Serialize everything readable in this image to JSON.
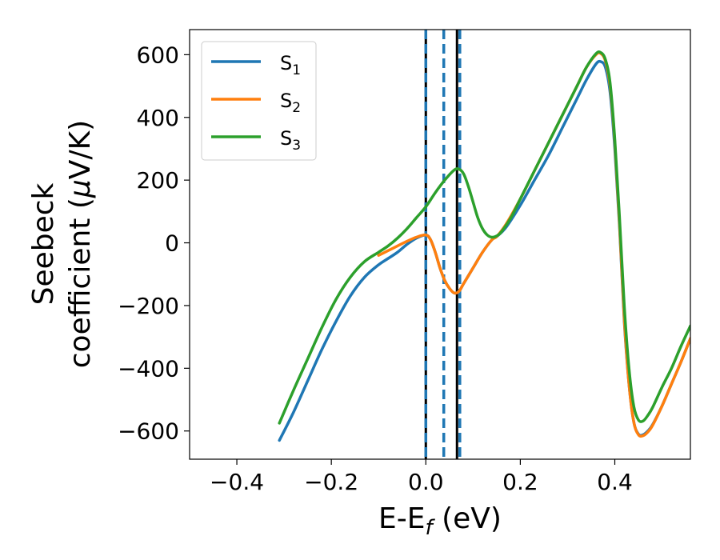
{
  "chart_data": {
    "type": "line",
    "xlabel": "E-E",
    "xlabel_sub": "f",
    "xlabel_unit": " (eV)",
    "ylabel_line1": "Seebeck",
    "ylabel_line2": "coefficient  (",
    "ylabel_mu": "μ",
    "ylabel_unit": "V/K)",
    "xlim": [
      -0.5,
      0.56
    ],
    "ylim": [
      -690,
      680
    ],
    "xticks": [
      -0.4,
      -0.2,
      0.0,
      0.2,
      0.4
    ],
    "xtick_labels": [
      "−0.4",
      "−0.2",
      "0.0",
      "0.2",
      "0.4"
    ],
    "yticks": [
      -600,
      -400,
      -200,
      0,
      200,
      400,
      600
    ],
    "ytick_labels": [
      "−600",
      "−400",
      "−200",
      "0",
      "200",
      "400",
      "600"
    ],
    "grid": false,
    "legend_position": "top-left",
    "series": [
      {
        "name": "S",
        "sub": "1",
        "color": "#1f77b4",
        "x": [
          -0.31,
          -0.28,
          -0.25,
          -0.22,
          -0.19,
          -0.16,
          -0.13,
          -0.1,
          -0.08,
          -0.06,
          -0.04,
          -0.02,
          0.0,
          0.01,
          0.02,
          0.03,
          0.04,
          0.05,
          0.06,
          0.07,
          0.08,
          0.1,
          0.12,
          0.14,
          0.15,
          0.17,
          0.2,
          0.23,
          0.26,
          0.29,
          0.32,
          0.34,
          0.36,
          0.37,
          0.38,
          0.39,
          0.4,
          0.41,
          0.42,
          0.43,
          0.44,
          0.45,
          0.46,
          0.47,
          0.48,
          0.5,
          0.52,
          0.54,
          0.56
        ],
        "y": [
          -630,
          -540,
          -440,
          -340,
          -250,
          -170,
          -110,
          -70,
          -50,
          -30,
          -5,
          15,
          25,
          10,
          -30,
          -80,
          -120,
          -145,
          -160,
          -155,
          -130,
          -80,
          -30,
          10,
          20,
          50,
          120,
          200,
          280,
          370,
          460,
          520,
          570,
          578,
          560,
          480,
          300,
          50,
          -250,
          -450,
          -570,
          -610,
          -612,
          -600,
          -580,
          -520,
          -450,
          -380,
          -305
        ]
      },
      {
        "name": "S",
        "sub": "2",
        "color": "#ff7f0e",
        "x": [
          -0.1,
          -0.08,
          -0.06,
          -0.04,
          -0.02,
          0.0,
          0.01,
          0.02,
          0.03,
          0.04,
          0.05,
          0.06,
          0.07,
          0.08,
          0.1,
          0.12,
          0.14,
          0.15,
          0.17,
          0.2,
          0.23,
          0.26,
          0.29,
          0.32,
          0.34,
          0.36,
          0.37,
          0.38,
          0.39,
          0.4,
          0.41,
          0.42,
          0.43,
          0.44,
          0.45,
          0.46,
          0.47,
          0.48,
          0.5,
          0.52,
          0.54,
          0.56
        ],
        "y": [
          -40,
          -25,
          -10,
          5,
          18,
          25,
          10,
          -30,
          -80,
          -120,
          -145,
          -160,
          -155,
          -130,
          -80,
          -30,
          10,
          20,
          60,
          140,
          230,
          320,
          410,
          500,
          560,
          600,
          604,
          580,
          500,
          320,
          60,
          -240,
          -450,
          -570,
          -612,
          -615,
          -603,
          -582,
          -520,
          -450,
          -380,
          -305
        ]
      },
      {
        "name": "S",
        "sub": "3",
        "color": "#2ca02c",
        "x": [
          -0.31,
          -0.28,
          -0.25,
          -0.22,
          -0.19,
          -0.16,
          -0.13,
          -0.1,
          -0.08,
          -0.06,
          -0.04,
          -0.02,
          0.0,
          0.02,
          0.04,
          0.06,
          0.07,
          0.08,
          0.09,
          0.1,
          0.11,
          0.12,
          0.13,
          0.14,
          0.15,
          0.16,
          0.18,
          0.2,
          0.23,
          0.26,
          0.29,
          0.32,
          0.34,
          0.36,
          0.37,
          0.38,
          0.39,
          0.4,
          0.41,
          0.42,
          0.43,
          0.44,
          0.45,
          0.46,
          0.47,
          0.48,
          0.5,
          0.52,
          0.54,
          0.56
        ],
        "y": [
          -575,
          -470,
          -370,
          -270,
          -180,
          -110,
          -60,
          -30,
          -10,
          15,
          45,
          80,
          115,
          160,
          200,
          232,
          235,
          220,
          180,
          130,
          80,
          45,
          25,
          18,
          22,
          35,
          80,
          140,
          230,
          320,
          410,
          500,
          560,
          603,
          607,
          585,
          510,
          330,
          80,
          -200,
          -400,
          -520,
          -565,
          -568,
          -550,
          -525,
          -460,
          -400,
          -330,
          -265
        ]
      }
    ],
    "vlines": [
      {
        "x": 0.0,
        "color": "#000000",
        "style": "solid"
      },
      {
        "x": 0.066,
        "color": "#000000",
        "style": "solid"
      },
      {
        "x": 0.0,
        "color": "#1f77b4",
        "style": "dashed"
      },
      {
        "x": 0.038,
        "color": "#1f77b4",
        "style": "dashed"
      },
      {
        "x": 0.072,
        "color": "#1f77b4",
        "style": "dashed"
      }
    ]
  }
}
